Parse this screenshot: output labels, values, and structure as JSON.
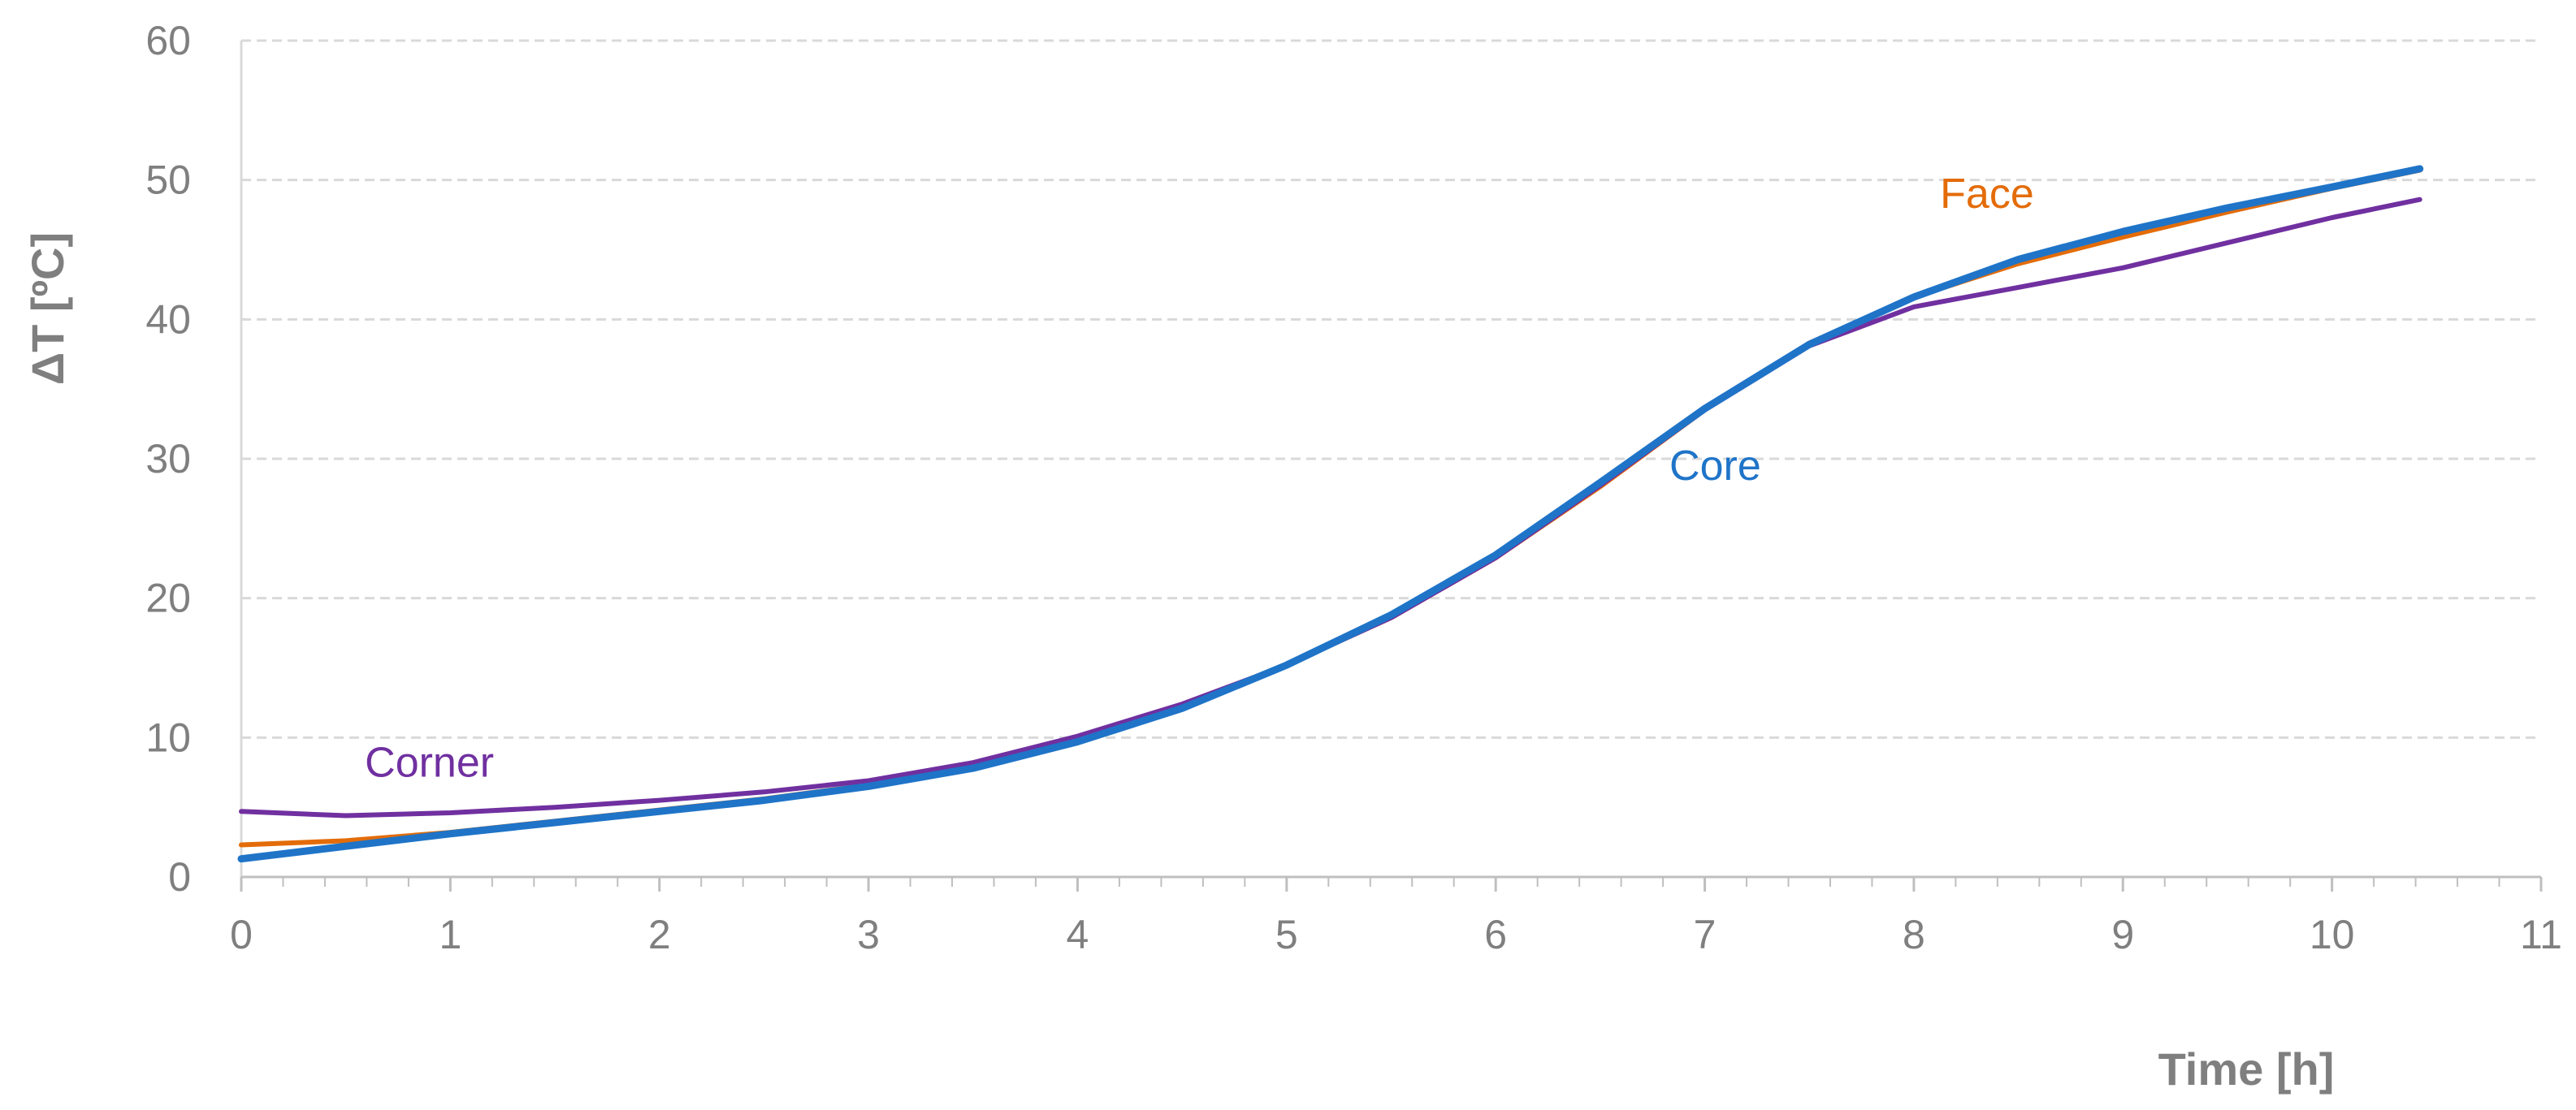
{
  "chart_data": {
    "type": "line",
    "title": "",
    "xlabel": "Time [h]",
    "ylabel": "ΔT [ºC]",
    "xlim": [
      0,
      11
    ],
    "ylim": [
      0,
      60
    ],
    "xticks": [
      0,
      1,
      2,
      3,
      4,
      5,
      6,
      7,
      8,
      9,
      10,
      11
    ],
    "yticks": [
      0,
      10,
      20,
      30,
      40,
      50,
      60
    ],
    "grid": "horizontal-dashed",
    "legend": "none (inline labels)",
    "series": [
      {
        "name": "Face",
        "color": "#e36c09",
        "label_at": [
          8.35,
          48.0
        ],
        "x": [
          0,
          0.5,
          1,
          1.5,
          2,
          2.5,
          3,
          3.5,
          4,
          4.5,
          5,
          5.5,
          6,
          6.5,
          7,
          7.5,
          8,
          8.5,
          9,
          9.5,
          10,
          10.42
        ],
        "y": [
          2.3,
          2.6,
          3.2,
          4.0,
          4.8,
          5.6,
          6.6,
          7.9,
          9.8,
          12.3,
          15.2,
          18.6,
          22.9,
          28.0,
          33.5,
          38.3,
          41.6,
          44.0,
          45.9,
          47.7,
          49.4,
          50.7
        ]
      },
      {
        "name": "Core",
        "color": "#1f74c8",
        "label_at": [
          7.05,
          28.5
        ],
        "x": [
          0,
          0.5,
          1,
          1.5,
          2,
          2.5,
          3,
          3.5,
          4,
          4.5,
          5,
          5.5,
          6,
          6.5,
          7,
          7.5,
          8,
          8.5,
          9,
          9.5,
          10,
          10.42
        ],
        "y": [
          1.3,
          2.2,
          3.1,
          3.9,
          4.7,
          5.5,
          6.5,
          7.8,
          9.7,
          12.1,
          15.2,
          18.8,
          23.1,
          28.3,
          33.6,
          38.2,
          41.6,
          44.3,
          46.3,
          48.0,
          49.5,
          50.8
        ]
      },
      {
        "name": "Corner",
        "color": "#7030a0",
        "label_at": [
          0.9,
          7.2
        ],
        "x": [
          0,
          0.5,
          1,
          1.5,
          2,
          2.5,
          3,
          3.5,
          4,
          4.5,
          5,
          5.5,
          6,
          6.5,
          7,
          7.5,
          8,
          8.5,
          9,
          9.5,
          10,
          10.42
        ],
        "y": [
          4.7,
          4.4,
          4.6,
          5.0,
          5.5,
          6.1,
          6.9,
          8.2,
          10.1,
          12.4,
          15.2,
          18.6,
          22.9,
          28.1,
          33.5,
          38.1,
          40.9,
          42.3,
          43.7,
          45.5,
          47.3,
          48.6
        ]
      }
    ]
  }
}
